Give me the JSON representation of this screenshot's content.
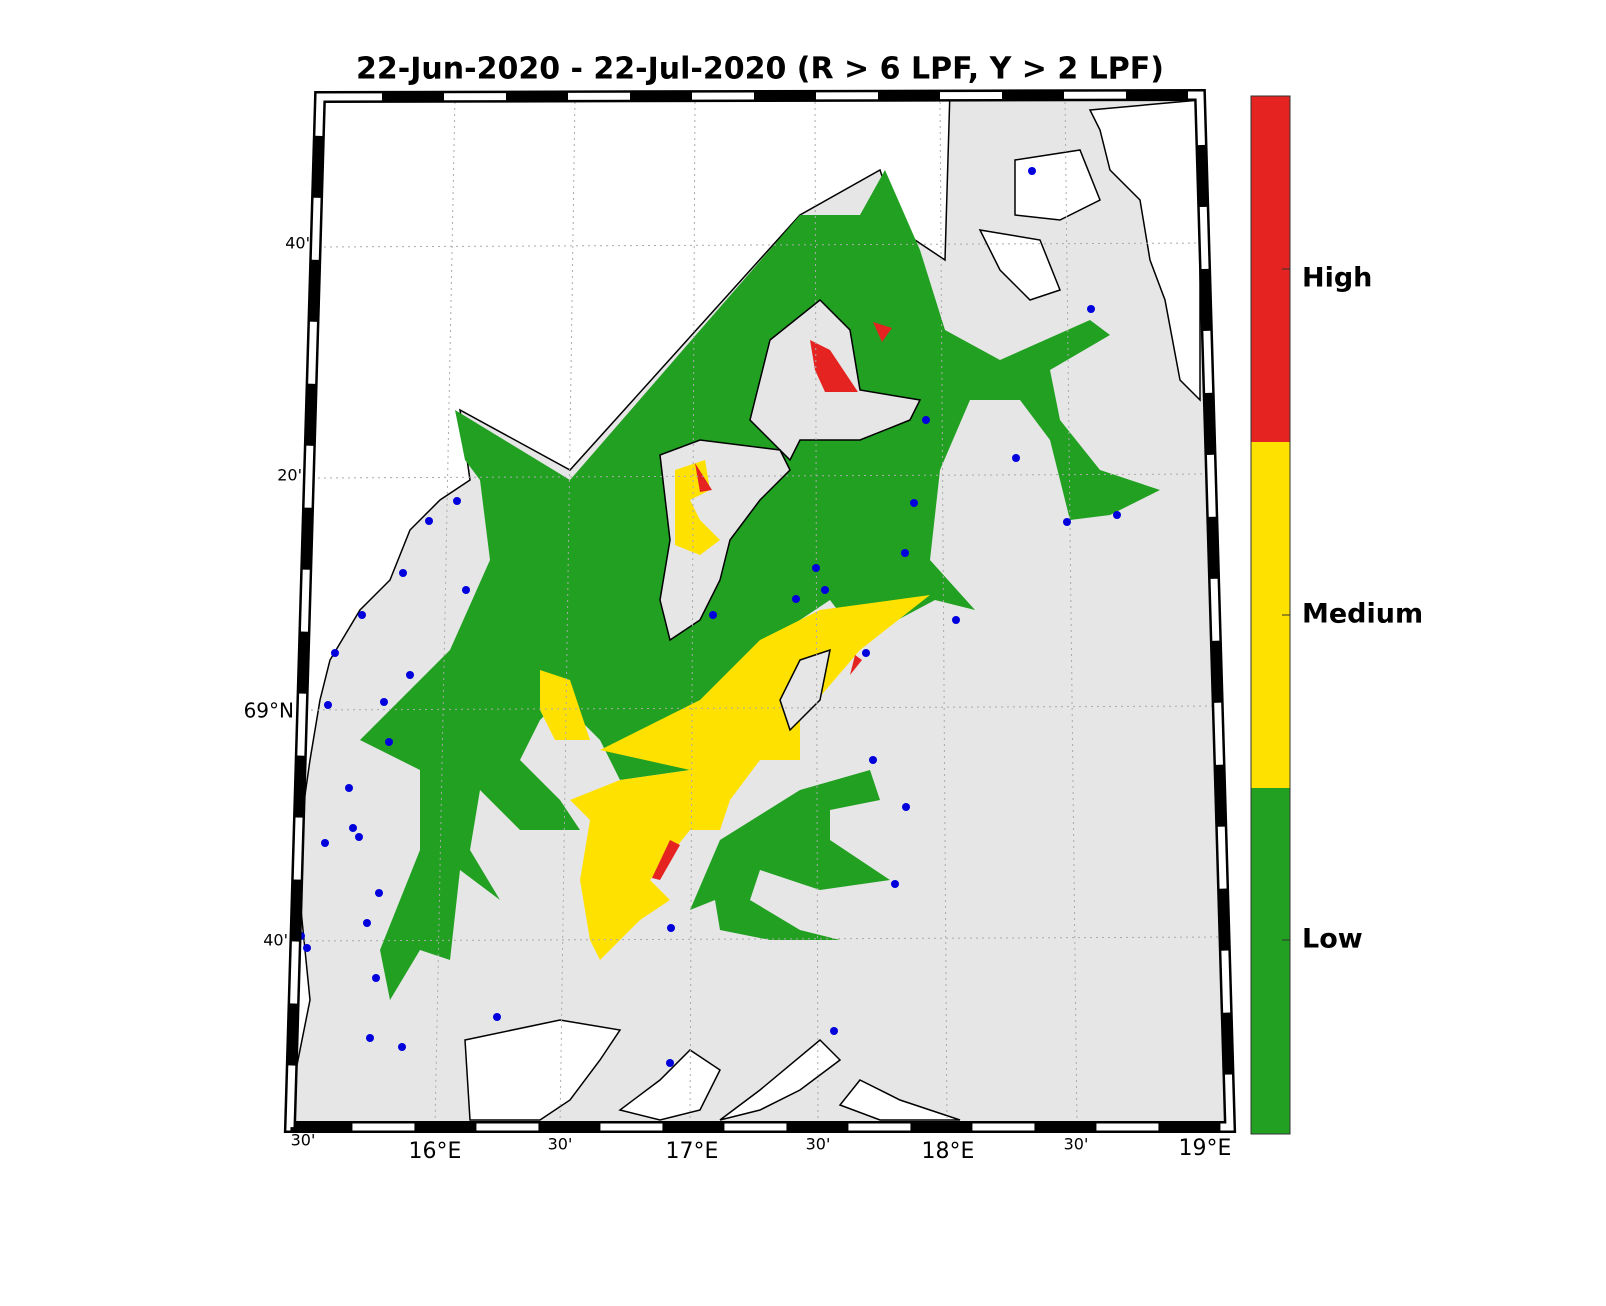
{
  "title": "22-Jun-2020  - 22-Jul-2020  (R > 6 LPF, Y > 2 LPF)",
  "colorbar": {
    "labels": [
      "High",
      "Medium",
      "Low"
    ]
  },
  "lat_labels": [
    "40'",
    "20'",
    "69°N",
    "40'"
  ],
  "lon_labels": [
    "30'",
    "16°E",
    "30'",
    "17°E",
    "30'",
    "18°E",
    "30'",
    "19°E"
  ]
}
